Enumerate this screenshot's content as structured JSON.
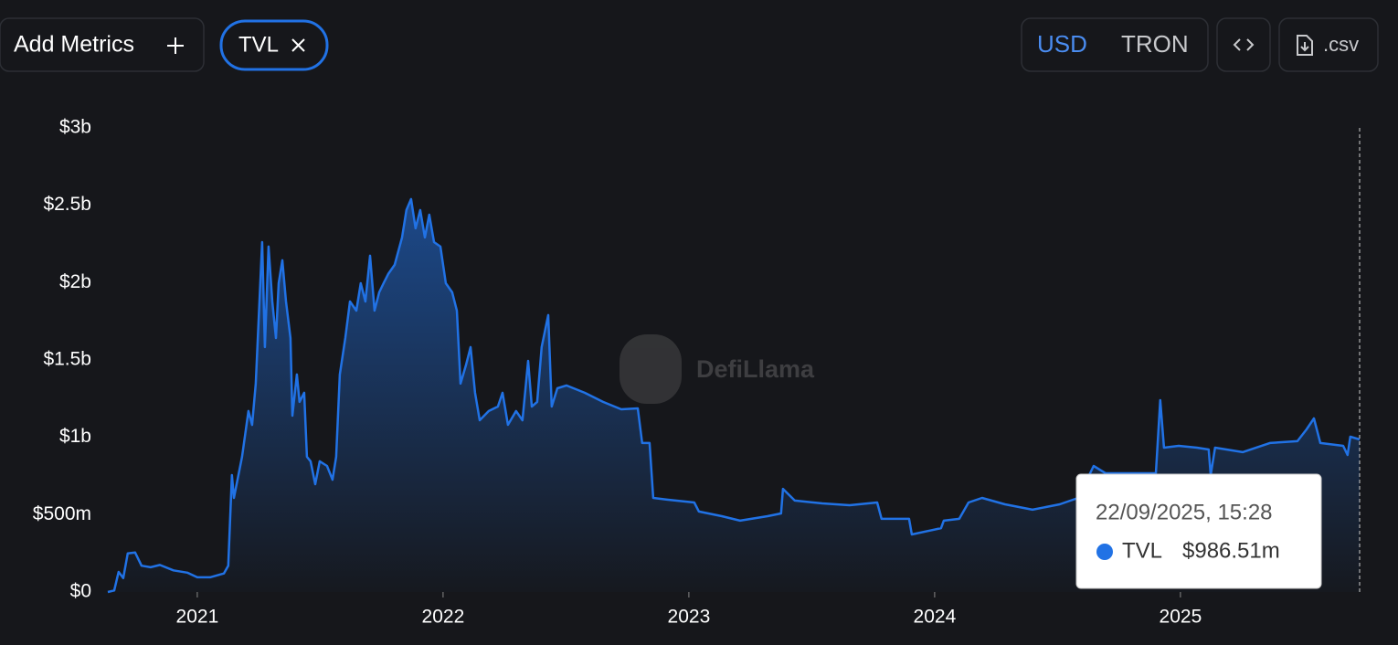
{
  "toolbar": {
    "add_metrics": "Add Metrics",
    "currency_usd": "USD",
    "currency_native": "TRON",
    "csv": ".csv"
  },
  "watermark": "DefiLlama",
  "chart_data": {
    "type": "area",
    "color": "#2172e5",
    "grid": false,
    "xlim": [
      2020.636,
      2025.729
    ],
    "xticks": [
      2021,
      2022,
      2023,
      2024,
      2025
    ],
    "ylim": [
      0,
      3000000000
    ],
    "yticks": [
      {
        "value": 0,
        "label": "$0"
      },
      {
        "value": 500000000,
        "label": "$500m"
      },
      {
        "value": 1000000000,
        "label": "$1b"
      },
      {
        "value": 1500000000,
        "label": "$1.5b"
      },
      {
        "value": 2000000000,
        "label": "$2b"
      },
      {
        "value": 2500000000,
        "label": "$2.5b"
      },
      {
        "value": 3000000000,
        "label": "$3b"
      }
    ],
    "x": [
      2020.636,
      2020.662,
      2020.68,
      2020.699,
      2020.717,
      2020.747,
      2020.773,
      2020.81,
      2020.848,
      2020.903,
      2020.959,
      2021.0,
      2021.052,
      2021.108,
      2021.126,
      2021.141,
      2021.149,
      2021.182,
      2021.208,
      2021.223,
      2021.238,
      2021.264,
      2021.275,
      2021.29,
      2021.305,
      2021.32,
      2021.331,
      2021.346,
      2021.361,
      2021.379,
      2021.387,
      2021.405,
      2021.416,
      2021.435,
      2021.446,
      2021.461,
      2021.48,
      2021.498,
      2021.528,
      2021.55,
      2021.565,
      2021.58,
      2021.602,
      2021.621,
      2021.647,
      2021.665,
      2021.684,
      2021.703,
      2021.721,
      2021.74,
      2021.758,
      2021.777,
      2021.803,
      2021.833,
      2021.851,
      2021.87,
      2021.888,
      2021.907,
      2021.926,
      2021.944,
      2021.963,
      2021.989,
      2022.011,
      2022.037,
      2022.056,
      2022.071,
      2022.093,
      2022.112,
      2022.13,
      2022.149,
      2022.186,
      2022.223,
      2022.242,
      2022.264,
      2022.297,
      2022.323,
      2022.346,
      2022.361,
      2022.383,
      2022.401,
      2022.428,
      2022.442,
      2022.465,
      2022.502,
      2022.576,
      2022.651,
      2022.725,
      2022.792,
      2022.81,
      2022.84,
      2022.855,
      2022.911,
      2023.022,
      2023.041,
      2023.134,
      2023.208,
      2023.32,
      2023.375,
      2023.383,
      2023.431,
      2023.543,
      2023.654,
      2023.766,
      2023.784,
      2023.896,
      2023.907,
      2024.026,
      2024.037,
      2024.1,
      2024.138,
      2024.193,
      2024.286,
      2024.398,
      2024.509,
      2024.584,
      2024.647,
      2024.695,
      2024.9,
      2024.918,
      2024.933,
      2024.993,
      2025.067,
      2025.115,
      2025.123,
      2025.141,
      2025.253,
      2025.364,
      2025.476,
      2025.513,
      2025.543,
      2025.569,
      2025.662,
      2025.68,
      2025.691,
      2025.729
    ],
    "series": [
      {
        "name": "TVL",
        "values": [
          0,
          10000000.0,
          130000000.0,
          90000000.0,
          250000000.0,
          255000000.0,
          170000000.0,
          160000000.0,
          175000000.0,
          140000000.0,
          125000000.0,
          95000000.0,
          95000000.0,
          120000000.0,
          170000000.0,
          756000000.0,
          608000000.0,
          874000000.0,
          1170000000.0,
          1080000000.0,
          1347000000.0,
          2262000000.0,
          1583000000.0,
          2233000000.0,
          1878000000.0,
          1642000000.0,
          1996000000.0,
          2144000000.0,
          1878000000.0,
          1642000000.0,
          1140000000.0,
          1406000000.0,
          1229000000.0,
          1288000000.0,
          874000000.0,
          845000000.0,
          697000000.0,
          845000000.0,
          815000000.0,
          726000000.0,
          874000000.0,
          1406000000.0,
          1642000000.0,
          1878000000.0,
          1819000000.0,
          1996000000.0,
          1878000000.0,
          2174000000.0,
          1819000000.0,
          1937000000.0,
          1996000000.0,
          2056000000.0,
          2115000000.0,
          2292000000.0,
          2469000000.0,
          2540000000.0,
          2351000000.0,
          2469000000.0,
          2292000000.0,
          2439000000.0,
          2262000000.0,
          2233000000.0,
          1996000000.0,
          1937000000.0,
          1819000000.0,
          1347000000.0,
          1465000000.0,
          1583000000.0,
          1288000000.0,
          1110000000.0,
          1170000000.0,
          1199000000.0,
          1288000000.0,
          1081000000.0,
          1170000000.0,
          1110000000.0,
          1494000000.0,
          1199000000.0,
          1229000000.0,
          1583000000.0,
          1790000000.0,
          1199000000.0,
          1317000000.0,
          1335000000.0,
          1288000000.0,
          1229000000.0,
          1181000000.0,
          1187000000.0,
          963000000.0,
          963000000.0,
          608000000.0,
          597000000.0,
          579000000.0,
          520000000.0,
          490000000.0,
          461000000.0,
          490000000.0,
          508000000.0,
          667000000.0,
          591000000.0,
          573000000.0,
          561000000.0,
          579000000.0,
          473000000.0,
          473000000.0,
          372000000.0,
          413000000.0,
          461000000.0,
          473000000.0,
          579000000.0,
          608000000.0,
          567000000.0,
          532000000.0,
          567000000.0,
          608000000.0,
          815000000.0,
          768000000.0,
          768000000.0,
          1240000000.0,
          933000000.0,
          945000000.0,
          933000000.0,
          921000000.0,
          756000000.0,
          933000000.0,
          904000000.0,
          963000000.0,
          975000000.0,
          1051000000.0,
          1122000000.0,
          963000000.0,
          945000000.0,
          886000000.0,
          1004000000.0,
          986510000.0
        ]
      }
    ],
    "tooltip": {
      "date": "22/09/2025, 15:28",
      "value": 986510000,
      "value_label": "$986.51m"
    }
  }
}
